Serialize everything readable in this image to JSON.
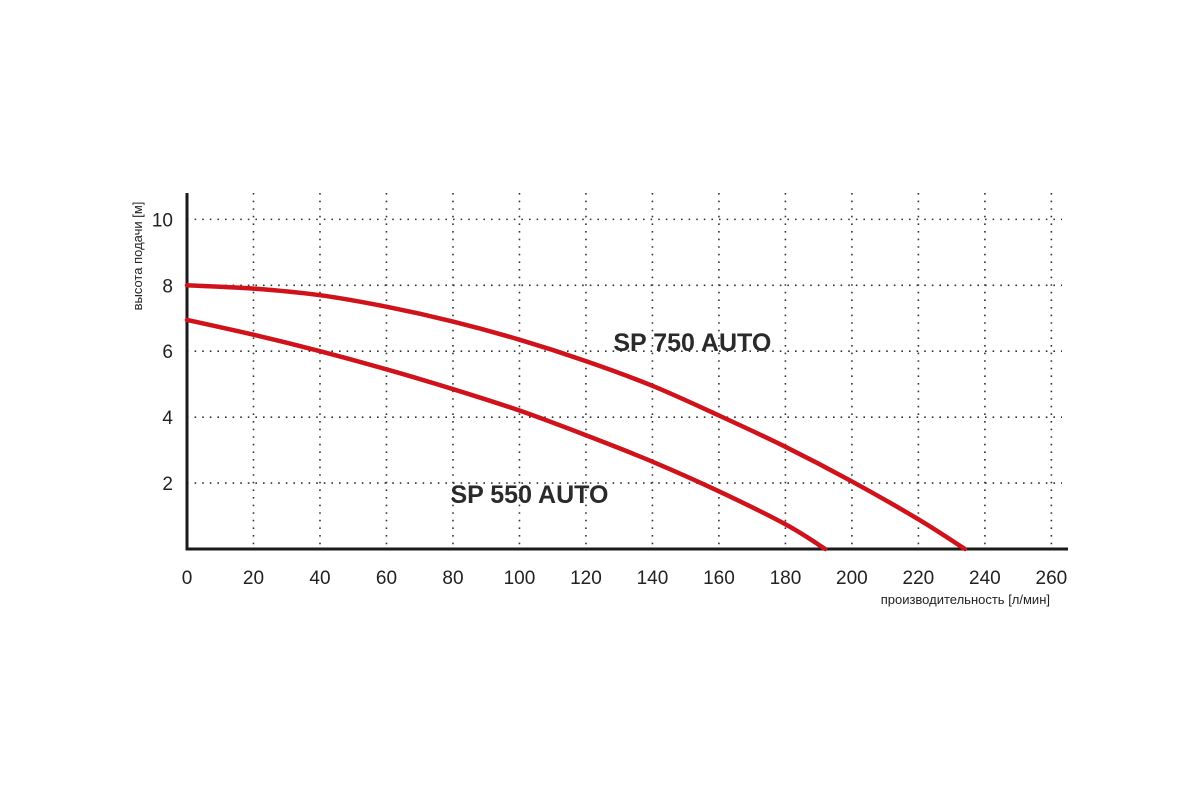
{
  "chart_data": {
    "type": "line",
    "xlabel": "производительность [л/мин]",
    "ylabel": "высота подачи [м]",
    "xlim": [
      0,
      265
    ],
    "ylim": [
      0,
      10.8
    ],
    "x_ticks": [
      0,
      20,
      40,
      60,
      80,
      100,
      120,
      140,
      160,
      180,
      200,
      220,
      240,
      260
    ],
    "y_ticks": [
      2,
      4,
      6,
      8,
      10
    ],
    "grid": true,
    "colors": {
      "series": "#d0121b",
      "axis": "#1a1a1a",
      "text": "#222222"
    },
    "series": [
      {
        "name": "SP 750 AUTO",
        "points": [
          [
            0,
            8.0
          ],
          [
            20,
            7.9
          ],
          [
            40,
            7.7
          ],
          [
            60,
            7.35
          ],
          [
            80,
            6.9
          ],
          [
            100,
            6.35
          ],
          [
            120,
            5.7
          ],
          [
            140,
            4.95
          ],
          [
            160,
            4.05
          ],
          [
            180,
            3.1
          ],
          [
            200,
            2.05
          ],
          [
            220,
            0.9
          ],
          [
            234,
            0.0
          ]
        ]
      },
      {
        "name": "SP 550 AUTO",
        "points": [
          [
            0,
            6.95
          ],
          [
            20,
            6.5
          ],
          [
            40,
            6.0
          ],
          [
            60,
            5.45
          ],
          [
            80,
            4.85
          ],
          [
            100,
            4.2
          ],
          [
            120,
            3.45
          ],
          [
            140,
            2.65
          ],
          [
            160,
            1.75
          ],
          [
            180,
            0.75
          ],
          [
            192,
            0.0
          ]
        ]
      }
    ]
  }
}
